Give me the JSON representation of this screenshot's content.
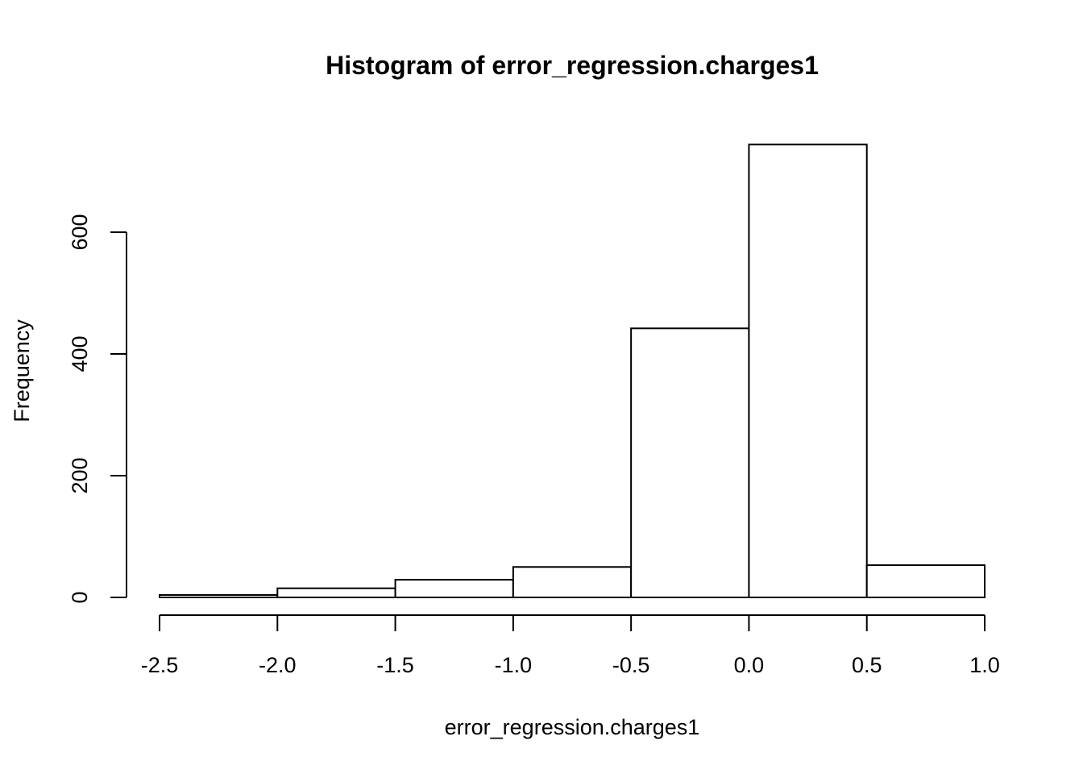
{
  "chart_data": {
    "type": "bar",
    "title": "Histogram of error_regression.charges1",
    "xlabel": "error_regression.charges1",
    "ylabel": "Frequency",
    "bins": [
      {
        "from": -2.5,
        "to": -2.0,
        "count": 4
      },
      {
        "from": -2.0,
        "to": -1.5,
        "count": 15
      },
      {
        "from": -1.5,
        "to": -1.0,
        "count": 29
      },
      {
        "from": -1.0,
        "to": -0.5,
        "count": 50
      },
      {
        "from": -0.5,
        "to": 0.0,
        "count": 442
      },
      {
        "from": 0.0,
        "to": 0.5,
        "count": 744
      },
      {
        "from": 0.5,
        "to": 1.0,
        "count": 53
      }
    ],
    "xlim": [
      -2.5,
      1.0
    ],
    "ylim": [
      0,
      744
    ],
    "x_ticks": [
      "-2.5",
      "-2.0",
      "-1.5",
      "-1.0",
      "-0.5",
      "0.0",
      "0.5",
      "1.0"
    ],
    "y_ticks": [
      "0",
      "200",
      "400",
      "600"
    ],
    "grid": false,
    "legend": "none",
    "colors": {
      "fill": "#ffffff",
      "stroke": "#000000"
    }
  }
}
